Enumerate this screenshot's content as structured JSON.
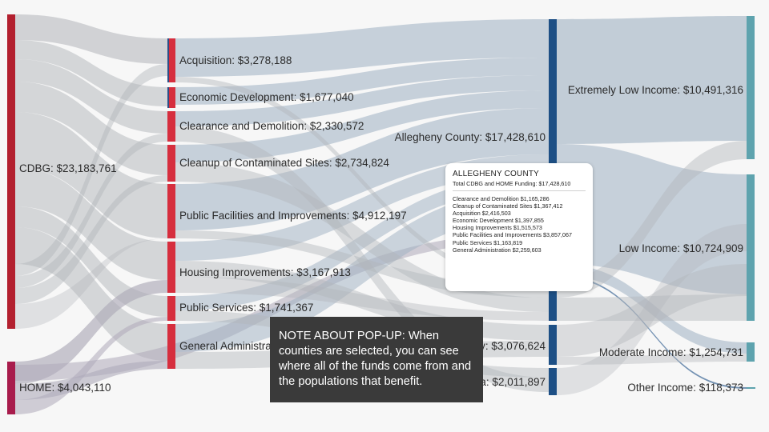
{
  "colors": {
    "cdbg": "#b3202f",
    "home": "#a81c4c",
    "purpose": "#d62e3e",
    "purpose_blue_edge": "#2d4f86",
    "county": "#1d4f85",
    "income": "#5ea3ae",
    "link": "#b2b5ba",
    "link_home": "#aeaab9",
    "link_selected": "#9eb0c2",
    "stage_bg": "#f7f7f7"
  },
  "chart_data": {
    "type": "sankey",
    "sources": [
      {
        "id": "cdbg",
        "label": "CDBG: $23,183,761",
        "value": 23183761
      },
      {
        "id": "home",
        "label": "HOME: $4,043,110",
        "value": 4043110
      }
    ],
    "purposes": [
      {
        "id": "acq",
        "label": "Acquisition: $3,278,188",
        "value": 3278188
      },
      {
        "id": "econ",
        "label": "Economic Development: $1,677,040",
        "value": 1677040
      },
      {
        "id": "clear",
        "label": "Clearance and Demolition: $2,330,572",
        "value": 2330572
      },
      {
        "id": "cleanup",
        "label": "Cleanup of Contaminated Sites: $2,734,824",
        "value": 2734824
      },
      {
        "id": "pubfac",
        "label": "Public Facilities and Improvements: $4,912,197",
        "value": 4912197
      },
      {
        "id": "housing",
        "label": "Housing Improvements: $3,167,913",
        "value": 3167913
      },
      {
        "id": "pubserv",
        "label": "Public Services: $1,741,367",
        "value": 1741367
      },
      {
        "id": "genadmin",
        "label": "General Administra",
        "value": 3341660
      }
    ],
    "counties": [
      {
        "id": "allegheny",
        "label": "Allegheny County: $17,428,610",
        "value": 17428610
      },
      {
        "id": "c2",
        "label": "",
        "value": 4773016
      },
      {
        "id": "c3",
        "label": "y: $3,076,624",
        "value": 3076624
      },
      {
        "id": "c4",
        "label": "a: $2,011,897",
        "value": 2011897
      }
    ],
    "incomes": [
      {
        "id": "eli",
        "label": "Extremely Low Income: $10,491,316",
        "value": 10491316
      },
      {
        "id": "li",
        "label": "Low Income: $10,724,909",
        "value": 10724909
      },
      {
        "id": "mi",
        "label": "Moderate Income: $1,254,731",
        "value": 1254731
      },
      {
        "id": "oi",
        "label": "Other Income: $118,373",
        "value": 118373
      }
    ]
  },
  "popup": {
    "title": "ALLEGHENY COUNTY",
    "total": "Total CDBG and HOME Funding: $17,428,610",
    "items": [
      "Clearance and Demolition $1,165,286",
      "Cleanup of Contaminated Sites $1,367,412",
      "Acquisition $2,416,503",
      "Economic Development $1,397,855",
      "Housing Improvements $1,515,573",
      "Public Facilities and Improvements $3,857,067",
      "Public Services $1,163,819",
      "General Administration $2,259,603"
    ]
  },
  "note": {
    "text": "NOTE ABOUT POP-UP: When counties are selected, you can see where all of the funds come from and the populations that benefit."
  }
}
